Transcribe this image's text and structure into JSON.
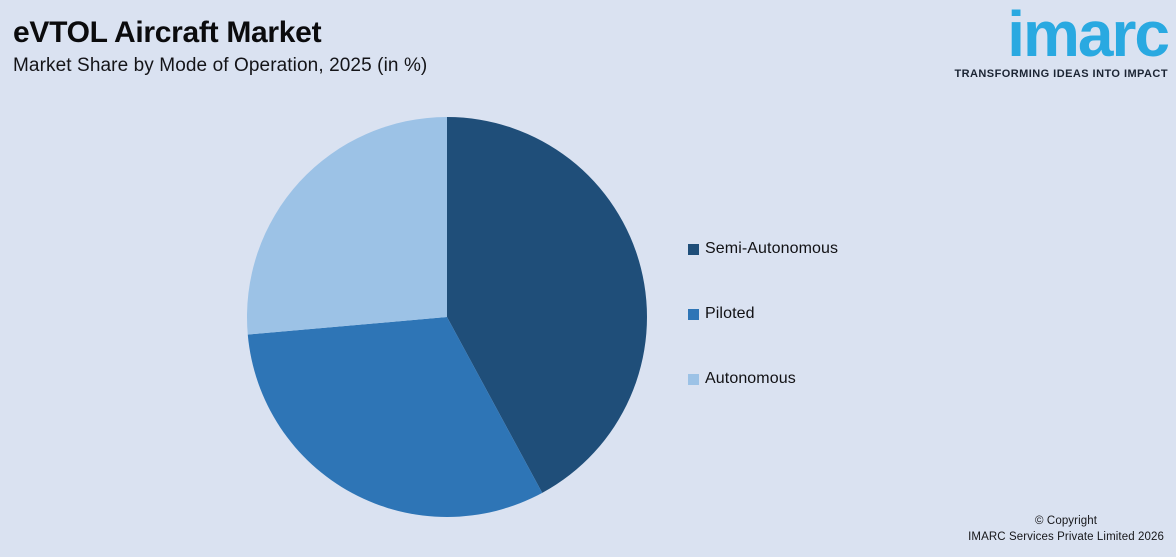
{
  "page": {
    "background": "#dae2f1"
  },
  "header": {
    "title": "eVTOL Aircraft Market",
    "subtitle": "Market Share by Mode of Operation, 2025 (in %)"
  },
  "logo": {
    "text": "imarc",
    "tagline": "TRANSFORMING IDEAS INTO IMPACT",
    "brand_color": "#29a9e1",
    "tagline_color": "#1b2433"
  },
  "chart_data": {
    "type": "pie",
    "title": "eVTOL Aircraft Market",
    "subtitle": "Market Share by Mode of Operation, 2025 (in %)",
    "year": "2025",
    "unit": "%",
    "direction": "clockwise",
    "start_angle_deg": 0,
    "legend_position": "right",
    "slices": [
      {
        "label": "Semi-Autonomous",
        "value": 42.1,
        "color": "#1f4e79"
      },
      {
        "label": "Piloted",
        "value": 31.5,
        "color": "#2e75b6"
      },
      {
        "label": "Autonomous",
        "value": 26.4,
        "color": "#9cc2e6"
      }
    ]
  },
  "footer": {
    "line1": "© Copyright",
    "line2": "IMARC Services Private Limited 2026"
  }
}
